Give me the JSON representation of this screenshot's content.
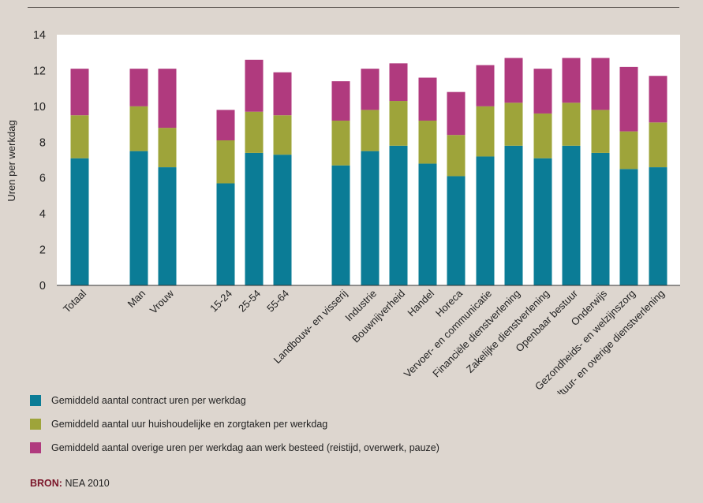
{
  "chart_data": {
    "type": "bar",
    "stacked": true,
    "ylabel": "Uren per werkdag",
    "ylim": [
      0,
      14
    ],
    "yticks": [
      0,
      2,
      4,
      6,
      8,
      10,
      12,
      14
    ],
    "grid": false,
    "categories": [
      "Totaal",
      "Man",
      "Vrouw",
      "15-24",
      "25-54",
      "55-64",
      "Landbouw- en visserij",
      "Industrie",
      "Bouwnijverheid",
      "Handel",
      "Horeca",
      "Vervoer- en communicatie",
      "Financiële dienstverlening",
      "Zakelijke dienstverlening",
      "Openbaar bestuur",
      "Onderwijs",
      "Gezondheids- en welzijnszorg",
      "Cultuur- en overige dienstverlening"
    ],
    "series": [
      {
        "name": "Gemiddeld aantal contract uren per werkdag",
        "color": "#0b7c96",
        "values": [
          7.1,
          7.5,
          6.6,
          5.7,
          7.4,
          7.3,
          6.7,
          7.5,
          7.8,
          6.8,
          6.1,
          7.2,
          7.8,
          7.1,
          7.8,
          7.4,
          6.5,
          6.6
        ]
      },
      {
        "name": "Gemiddeld aantal uur huishoudelijke en zorgtaken per werkdag",
        "color": "#9ea43a",
        "values": [
          2.4,
          2.5,
          2.2,
          2.4,
          2.3,
          2.2,
          2.5,
          2.3,
          2.5,
          2.4,
          2.3,
          2.8,
          2.4,
          2.5,
          2.4,
          2.4,
          2.1,
          2.5
        ]
      },
      {
        "name": "Gemiddeld aantal overige uren per werkdag aan werk besteed (reistijd, overwerk, pauze)",
        "color": "#b03a7e",
        "values": [
          2.6,
          2.1,
          3.3,
          1.7,
          2.9,
          2.4,
          2.2,
          2.3,
          2.1,
          2.4,
          2.4,
          2.3,
          2.5,
          2.5,
          2.5,
          2.9,
          3.6,
          2.6
        ]
      }
    ],
    "legend_position": "bottom-left"
  },
  "source": {
    "label": "BRON:",
    "text": "NEA 2010"
  }
}
